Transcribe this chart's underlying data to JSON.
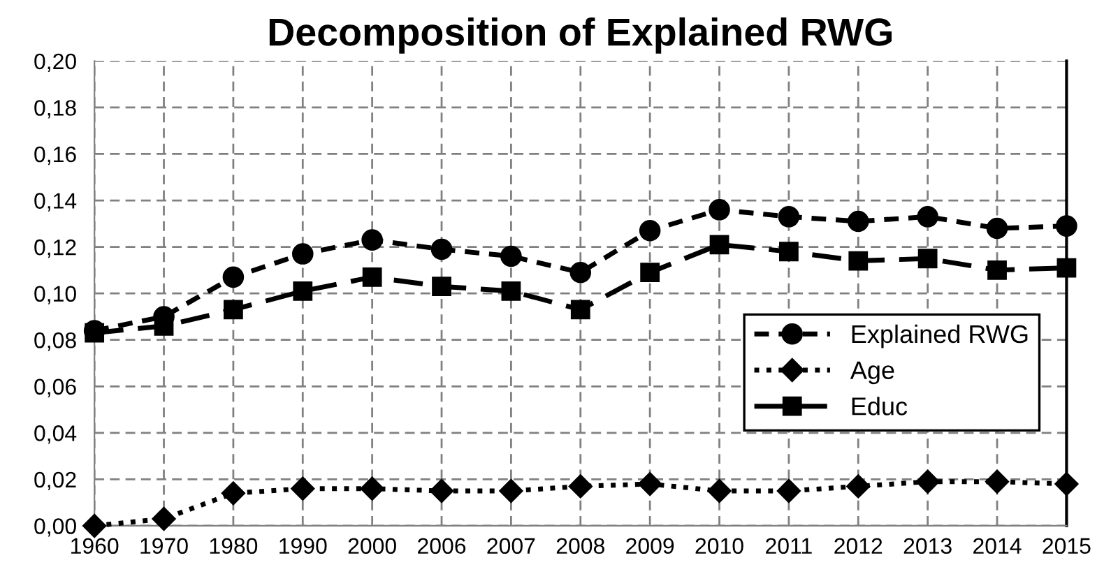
{
  "chart_data": {
    "type": "line",
    "title": "Decomposition of Explained RWG",
    "categories": [
      "1960",
      "1970",
      "1980",
      "1990",
      "2000",
      "2006",
      "2007",
      "2008",
      "2009",
      "2010",
      "2011",
      "2012",
      "2013",
      "2014",
      "2015"
    ],
    "series": [
      {
        "name": "Explained RWG",
        "color": "#000000",
        "marker": "circle",
        "line_style": "dashed",
        "values": [
          0.084,
          0.09,
          0.107,
          0.117,
          0.123,
          0.119,
          0.116,
          0.109,
          0.127,
          0.136,
          0.133,
          0.131,
          0.133,
          0.128,
          0.129
        ]
      },
      {
        "name": "Age",
        "color": "#000000",
        "marker": "diamond",
        "line_style": "dotted",
        "values": [
          0.0,
          0.003,
          0.014,
          0.016,
          0.016,
          0.015,
          0.015,
          0.017,
          0.018,
          0.015,
          0.015,
          0.017,
          0.019,
          0.019,
          0.018
        ]
      },
      {
        "name": "Educ",
        "color": "#000000",
        "marker": "square",
        "line_style": "long_dashed",
        "values": [
          0.083,
          0.086,
          0.093,
          0.101,
          0.107,
          0.103,
          0.101,
          0.093,
          0.109,
          0.121,
          0.118,
          0.114,
          0.115,
          0.11,
          0.111
        ]
      }
    ],
    "ylim": [
      0,
      0.2
    ],
    "yticks": [
      {
        "value": 0,
        "label": "0,00"
      },
      {
        "value": 0.02,
        "label": "0,02"
      },
      {
        "value": 0.04,
        "label": "0,04"
      },
      {
        "value": 0.06,
        "label": "0,06"
      },
      {
        "value": 0.08,
        "label": "0,08"
      },
      {
        "value": 0.1,
        "label": "0,10"
      },
      {
        "value": 0.12,
        "label": "0,12"
      },
      {
        "value": 0.14,
        "label": "0,14"
      },
      {
        "value": 0.16,
        "label": "0,16"
      },
      {
        "value": 0.18,
        "label": "0,18"
      },
      {
        "value": 0.2,
        "label": "0,20"
      }
    ],
    "grid": true,
    "legend": "right"
  }
}
